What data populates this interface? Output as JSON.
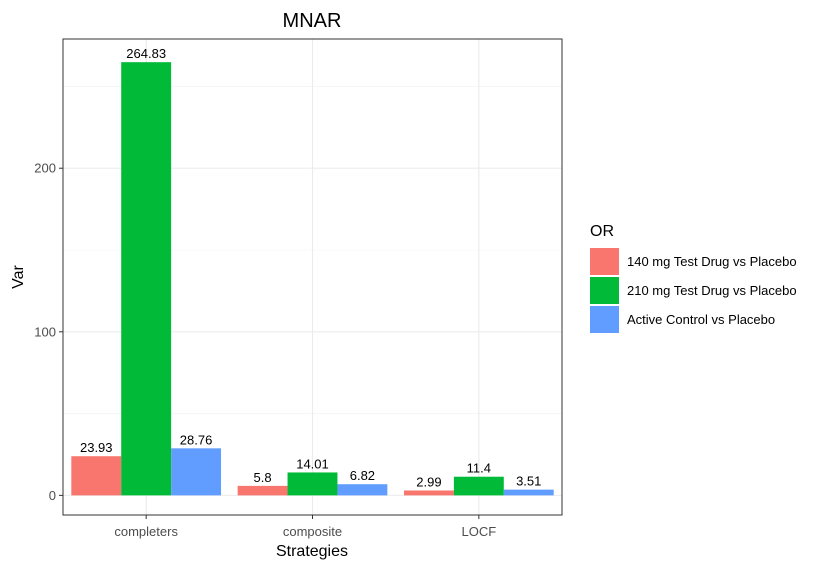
{
  "chart_data": {
    "type": "bar",
    "title": "MNAR",
    "xlabel": "Strategies",
    "ylabel": "Var",
    "categories": [
      "completers",
      "composite",
      "LOCF"
    ],
    "ylim": [
      -12,
      279
    ],
    "yticks": [
      0,
      100,
      200
    ],
    "grid": true,
    "legend": {
      "title": "OR",
      "position": "right"
    },
    "series": [
      {
        "name": "140 mg Test Drug vs Placebo",
        "color": "#F8766D",
        "values": [
          23.93,
          5.8,
          2.99
        ],
        "labels": [
          "23.93",
          "5.8",
          "2.99"
        ]
      },
      {
        "name": "210 mg Test Drug vs Placebo",
        "color": "#00BA38",
        "values": [
          264.83,
          14.01,
          11.4
        ],
        "labels": [
          "264.83",
          "14.01",
          "11.4"
        ]
      },
      {
        "name": "Active Control vs Placebo",
        "color": "#619CFF",
        "values": [
          28.76,
          6.82,
          3.51
        ],
        "labels": [
          "28.76",
          "6.82",
          "3.51"
        ]
      }
    ]
  }
}
